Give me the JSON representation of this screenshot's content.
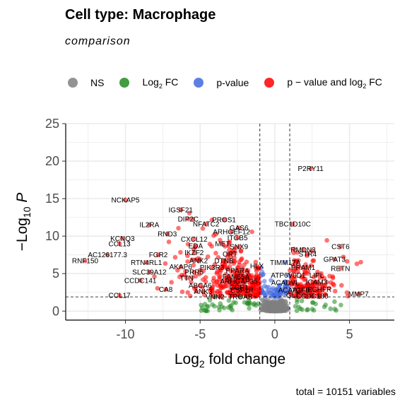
{
  "title": "Cell type: Macrophage",
  "subtitle": "comparison",
  "caption": "total = 10151 variables",
  "legend": [
    {
      "label": "NS",
      "sub": "",
      "tail": "",
      "color": "#808080"
    },
    {
      "label": "Log",
      "sub": "2",
      "tail": " FC",
      "color": "#228b22"
    },
    {
      "label": "p-value",
      "sub": "",
      "tail": "",
      "color": "#4169e1"
    },
    {
      "label": "p − value and log",
      "sub": "2",
      "tail": " FC",
      "color": "#ff0000"
    }
  ],
  "chart_data": {
    "type": "scatter",
    "xlabel": "Log2 fold change",
    "ylabel": "−Log10 P",
    "xlim": [
      -14,
      8
    ],
    "ylim": [
      -1.2,
      25
    ],
    "x_ticks": [
      -10,
      -5,
      0,
      5
    ],
    "y_ticks": [
      0,
      5,
      10,
      15,
      20,
      25
    ],
    "fc_cutoff": 1,
    "p_cutoff_log10": 1.9,
    "grid": true,
    "labeled_points": [
      {
        "label": "P2RY11",
        "x": 2.4,
        "y": 19.0
      },
      {
        "label": "NCKAP5",
        "x": -10.0,
        "y": 14.8
      },
      {
        "label": "IGSF21",
        "x": -6.3,
        "y": 13.5
      },
      {
        "label": "DIP2C",
        "x": -5.8,
        "y": 12.3
      },
      {
        "label": "PROS1",
        "x": -3.4,
        "y": 12.2
      },
      {
        "label": "NFATC2",
        "x": -4.6,
        "y": 11.6
      },
      {
        "label": "IL2RA",
        "x": -8.4,
        "y": 11.5
      },
      {
        "label": "TBC1D10C",
        "x": 1.2,
        "y": 11.6
      },
      {
        "label": "GAS6",
        "x": -2.4,
        "y": 11.1
      },
      {
        "label": "ARHGEF12",
        "x": -2.9,
        "y": 10.6
      },
      {
        "label": "RND3",
        "x": -7.2,
        "y": 10.3
      },
      {
        "label": "ITGB5",
        "x": -2.5,
        "y": 9.8
      },
      {
        "label": "KCNQ3",
        "x": -10.2,
        "y": 9.7
      },
      {
        "label": "CXCL12",
        "x": -5.4,
        "y": 9.6
      },
      {
        "label": "CCL13",
        "x": -10.4,
        "y": 9.0
      },
      {
        "label": "MET",
        "x": -3.5,
        "y": 9.0
      },
      {
        "label": "EDA",
        "x": -5.3,
        "y": 8.7
      },
      {
        "label": "SNX9",
        "x": -2.4,
        "y": 8.6
      },
      {
        "label": "CST6",
        "x": 4.4,
        "y": 8.6
      },
      {
        "label": "RMDN3",
        "x": 1.9,
        "y": 8.2
      },
      {
        "label": "IKZF2",
        "x": -5.4,
        "y": 7.8
      },
      {
        "label": "ORT",
        "x": -3.0,
        "y": 7.6
      },
      {
        "label": "AC126177.3",
        "x": -11.2,
        "y": 7.5
      },
      {
        "label": "FGR2",
        "x": -7.8,
        "y": 7.5
      },
      {
        "label": "STR4",
        "x": 2.2,
        "y": 7.6
      },
      {
        "label": "RNF150",
        "x": -12.7,
        "y": 6.7
      },
      {
        "label": "RTN4RL1",
        "x": -8.6,
        "y": 6.5
      },
      {
        "label": "ANK2",
        "x": -5.1,
        "y": 6.7
      },
      {
        "label": "DTNB",
        "x": -3.4,
        "y": 6.7
      },
      {
        "label": "TIMM17A",
        "x": 0.7,
        "y": 6.5
      },
      {
        "label": "GPAT3",
        "x": 4.0,
        "y": 6.9
      },
      {
        "label": "AKAP6",
        "x": -6.3,
        "y": 5.9
      },
      {
        "label": "PIK3R3",
        "x": -4.2,
        "y": 5.8
      },
      {
        "label": "HLX",
        "x": -1.2,
        "y": 6.0
      },
      {
        "label": "PRAM1",
        "x": 1.9,
        "y": 5.8
      },
      {
        "label": "RETN",
        "x": 4.4,
        "y": 5.7
      },
      {
        "label": "SLC39A12",
        "x": -8.4,
        "y": 5.2
      },
      {
        "label": "PRR5",
        "x": -5.4,
        "y": 5.2
      },
      {
        "label": "PPARA",
        "x": -2.5,
        "y": 5.4
      },
      {
        "label": "FAM65A",
        "x": -2.6,
        "y": 4.6
      },
      {
        "label": "ATP6V0D1",
        "x": 0.9,
        "y": 4.8
      },
      {
        "label": "LIPL",
        "x": 2.8,
        "y": 4.8
      },
      {
        "label": "CCDC141",
        "x": -9.0,
        "y": 4.1
      },
      {
        "label": "TTN",
        "x": -5.9,
        "y": 4.4
      },
      {
        "label": "ARHGAP35",
        "x": -2.4,
        "y": 4.0
      },
      {
        "label": "ACADVL",
        "x": 0.7,
        "y": 3.8
      },
      {
        "label": "ICAM3",
        "x": 2.8,
        "y": 3.9
      },
      {
        "label": "ABCA6",
        "x": -5.0,
        "y": 3.4
      },
      {
        "label": "CCR1",
        "x": -2.4,
        "y": 3.2
      },
      {
        "label": "CA8",
        "x": -7.3,
        "y": 2.9
      },
      {
        "label": "ANK3",
        "x": -4.8,
        "y": 2.6
      },
      {
        "label": "CSF1R",
        "x": -2.2,
        "y": 2.8
      },
      {
        "label": "ACAA1",
        "x": 1.0,
        "y": 2.8
      },
      {
        "label": "TGFBI",
        "x": 1.8,
        "y": 2.8
      },
      {
        "label": "FCHFR",
        "x": 3.0,
        "y": 2.9
      },
      {
        "label": "CCL17",
        "x": -10.4,
        "y": 2.1
      },
      {
        "label": "MMP7",
        "x": 5.6,
        "y": 2.3
      },
      {
        "label": "VNN2",
        "x": -4.0,
        "y": 1.9
      },
      {
        "label": "TROAB",
        "x": -2.3,
        "y": 1.9
      },
      {
        "label": "GLT",
        "x": 1.2,
        "y": 2.1
      },
      {
        "label": "CCDC180",
        "x": 2.5,
        "y": 2.0
      }
    ]
  }
}
